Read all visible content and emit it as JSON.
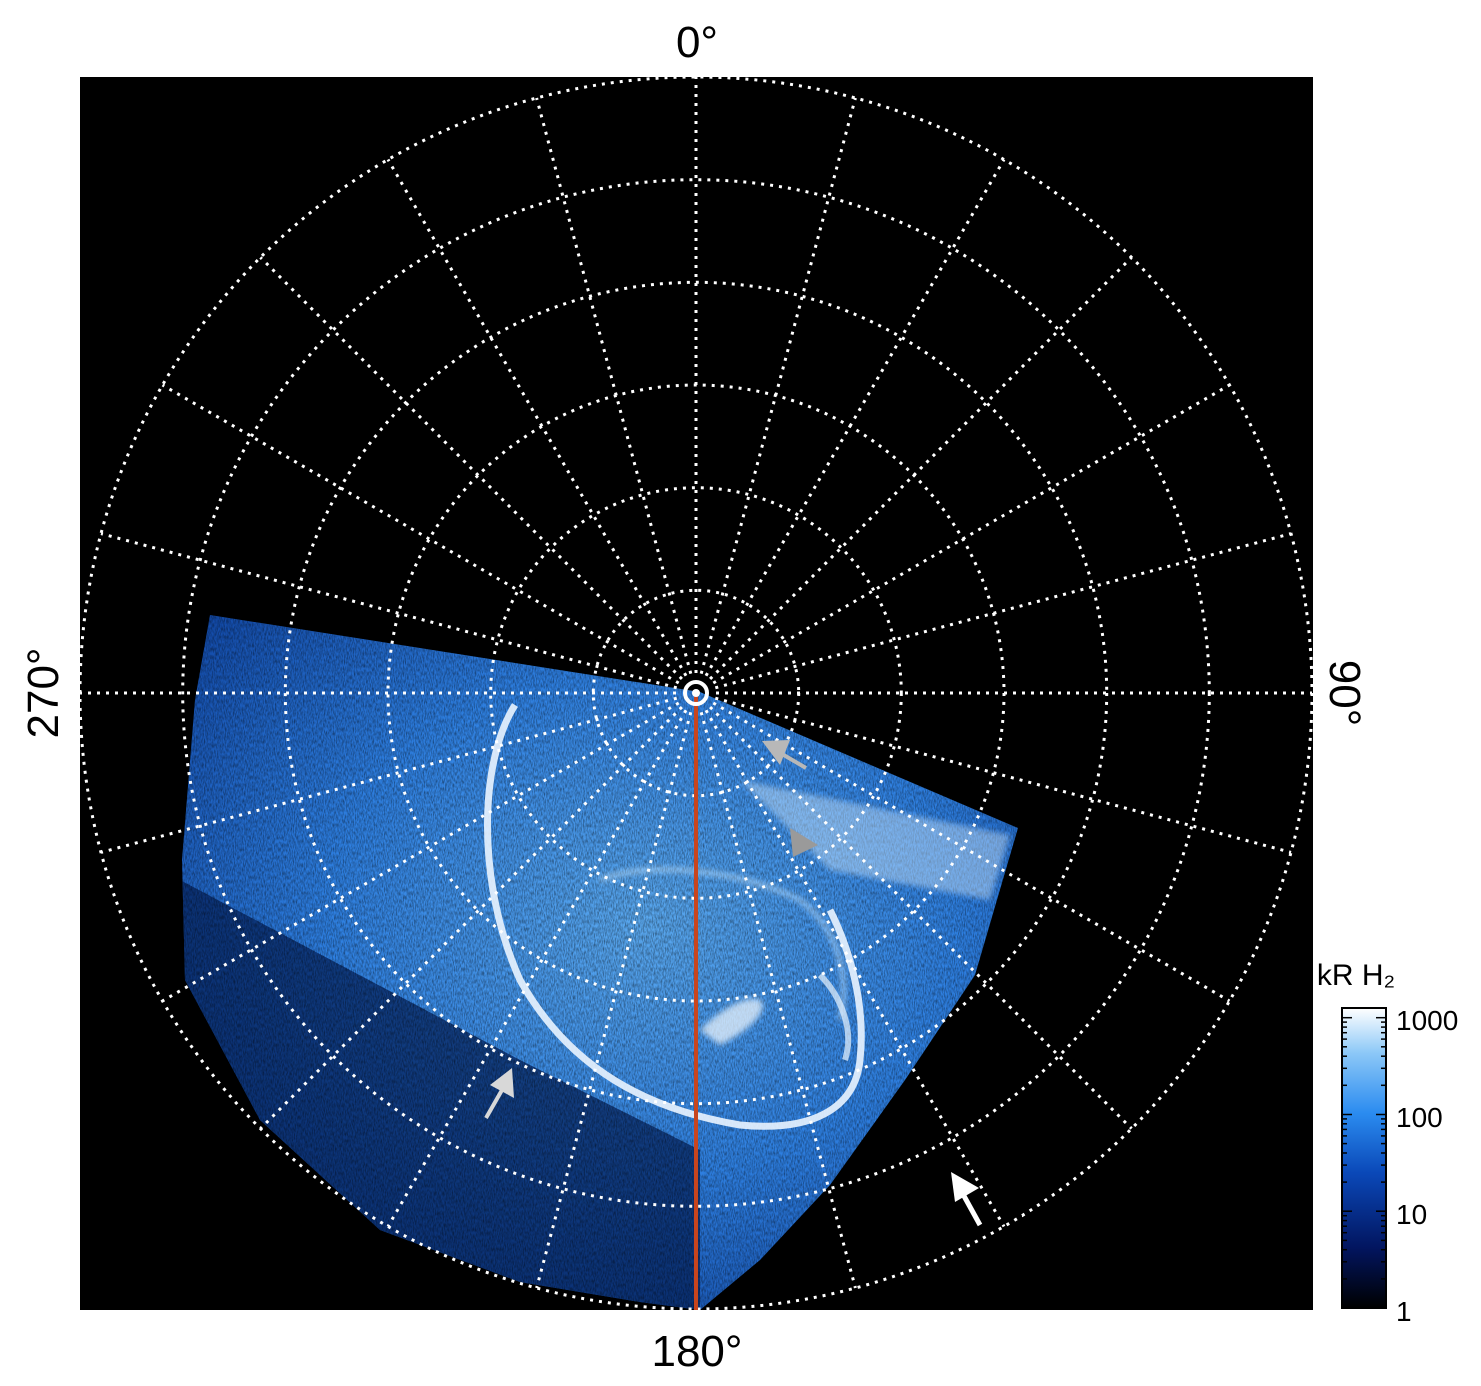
{
  "figure": {
    "angle_labels": {
      "top": "0°",
      "bottom": "180°",
      "left": "270°",
      "right": "90°"
    },
    "colorbar": {
      "title": "kR H₂",
      "scale": "log",
      "ticks": [
        "1000",
        "100",
        "10",
        "1"
      ],
      "colors": [
        "#000000",
        "#02155f",
        "#0a48b8",
        "#2b8cf0",
        "#8cc8f7",
        "#ffffff"
      ]
    },
    "image": {
      "background": "#000000",
      "grid_color": "#ffffff",
      "meridian_line_color": "#c8451e",
      "grid": {
        "rings": 6,
        "meridians": 24
      }
    },
    "arrows": [
      {
        "name": "gray-arrow-upper",
        "color": "#b8b8b8"
      },
      {
        "name": "gray-arrowhead-mid",
        "color": "#9a9a9a"
      },
      {
        "name": "lightgray-arrow-left",
        "color": "#d8d8d8"
      },
      {
        "name": "white-arrow-lower-right",
        "color": "#ffffff"
      }
    ]
  }
}
